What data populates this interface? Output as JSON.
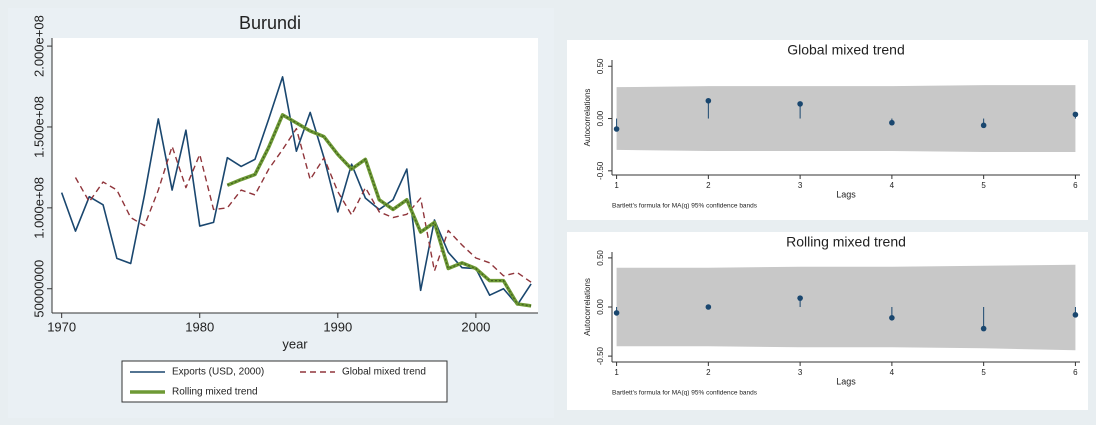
{
  "chart_data": [
    {
      "type": "line",
      "title": "Burundi",
      "x_label": "year",
      "x": [
        1970,
        1971,
        1972,
        1973,
        1974,
        1975,
        1976,
        1977,
        1978,
        1979,
        1980,
        1981,
        1982,
        1983,
        1984,
        1985,
        1986,
        1987,
        1988,
        1989,
        1990,
        1991,
        1992,
        1993,
        1994,
        1995,
        1996,
        1997,
        1998,
        1999,
        2000,
        2001,
        2002,
        2003,
        2004
      ],
      "series": [
        {
          "name": "Exports (USD, 2000)",
          "color": "#1a476f",
          "values": [
            109400000,
            85600000,
            106900000,
            101900000,
            68750000,
            65600000,
            108000000,
            155000000,
            111000000,
            148000000,
            88750000,
            91000000,
            131000000,
            125600000,
            130000000,
            155000000,
            181000000,
            135000000,
            159000000,
            131000000,
            97500000,
            127000000,
            106000000,
            99000000,
            105000000,
            124000000,
            49000000,
            92500000,
            72500000,
            63000000,
            62500000,
            46000000,
            50000000,
            40000000,
            53000000
          ]
        },
        {
          "name": "Global mixed trend",
          "color": "#90353b",
          "values": [
            null,
            118750000,
            103750000,
            116000000,
            111000000,
            94000000,
            89000000,
            111000000,
            138000000,
            112500000,
            133000000,
            99000000,
            100000000,
            111000000,
            108000000,
            124000000,
            136000000,
            149000000,
            117500000,
            131000000,
            110000000,
            95600000,
            112500000,
            97500000,
            94000000,
            96000000,
            106000000,
            61000000,
            86000000,
            77000000,
            69000000,
            66000000,
            58000000,
            60000000,
            54000000
          ]
        },
        {
          "name": "Rolling mixed trend",
          "color": "#6e9a35",
          "values": [
            null,
            null,
            null,
            null,
            null,
            null,
            null,
            null,
            null,
            null,
            null,
            null,
            114000000,
            117500000,
            120600000,
            137500000,
            157500000,
            152500000,
            147500000,
            144000000,
            133000000,
            124000000,
            130000000,
            105000000,
            99000000,
            105000000,
            85000000,
            91000000,
            62500000,
            66000000,
            62500000,
            55000000,
            55000000,
            40600000,
            39400000
          ]
        }
      ],
      "xlim": [
        1969.3,
        2004.5
      ],
      "xticks": [
        1970,
        1980,
        1990,
        2000
      ],
      "ylim": [
        35000000,
        205000000
      ],
      "yticks": [
        50000000,
        {
          "value": 100000000,
          "label": "1.000e+08"
        },
        {
          "value": 150000000,
          "label": "1.500e+08"
        },
        {
          "value": 200000000,
          "label": "2.000e+08"
        }
      ]
    },
    {
      "type": "stem",
      "title": "Global mixed trend",
      "x_label": "Lags",
      "y_label": "Autocorrelations",
      "note": "Bartlett's formula for MA(q) 95% confidence bands",
      "x": [
        1,
        2,
        3,
        4,
        5,
        6
      ],
      "values": [
        -0.1,
        0.17,
        0.14,
        -0.04,
        -0.065,
        0.04
      ],
      "color": "#1a476f",
      "band_upper": [
        0.3,
        0.31,
        0.31,
        0.31,
        0.32,
        0.32
      ],
      "band_lower": [
        -0.3,
        -0.31,
        -0.31,
        -0.31,
        -0.32,
        -0.32
      ],
      "band_color": "#c8c8c8",
      "xlim": [
        0.95,
        6.05
      ],
      "xticks": [
        1,
        2,
        3,
        4,
        5,
        6
      ],
      "ylim": [
        -0.54,
        0.56
      ],
      "yticks": [
        {
          "value": -0.5,
          "label": "-0.50"
        },
        {
          "value": 0,
          "label": "0.00"
        },
        {
          "value": 0.5,
          "label": "0.50"
        }
      ]
    },
    {
      "type": "stem",
      "title": "Rolling mixed trend",
      "x_label": "Lags",
      "y_label": "Autocorrelations",
      "note": "Bartlett's formula for MA(q) 95% confidence bands",
      "x": [
        1,
        2,
        3,
        4,
        5,
        6
      ],
      "values": [
        -0.06,
        0.0,
        0.09,
        -0.11,
        -0.22,
        -0.08
      ],
      "color": "#1a476f",
      "band_upper": [
        0.4,
        0.4,
        0.41,
        0.41,
        0.42,
        0.43
      ],
      "band_lower": [
        -0.4,
        -0.4,
        -0.41,
        -0.41,
        -0.42,
        -0.44
      ],
      "band_color": "#c8c8c8",
      "xlim": [
        0.95,
        6.05
      ],
      "xticks": [
        1,
        2,
        3,
        4,
        5,
        6
      ],
      "ylim": [
        -0.56,
        0.56
      ],
      "yticks": [
        {
          "value": -0.5,
          "label": "-0.50"
        },
        {
          "value": 0,
          "label": "0.00"
        },
        {
          "value": 0.5,
          "label": "0.50"
        }
      ]
    }
  ]
}
